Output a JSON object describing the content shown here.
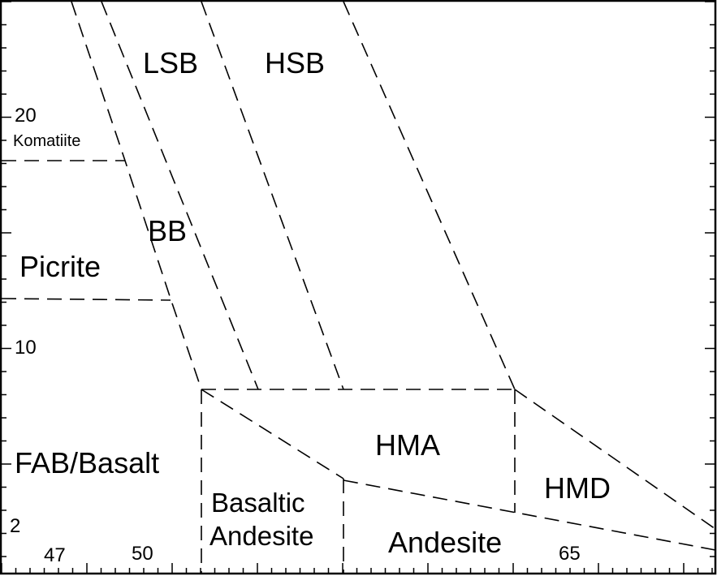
{
  "axes": {
    "y_ticks": [
      {
        "value": 20,
        "label": "20"
      },
      {
        "value": 10,
        "label": "10"
      },
      {
        "value": 2,
        "label": "2"
      }
    ],
    "x_ticks": [
      {
        "value": 47,
        "label": "47"
      },
      {
        "value": 50,
        "label": "50"
      },
      {
        "value": 65,
        "label": "65"
      }
    ]
  },
  "fields": {
    "lsb": "LSB",
    "hsb": "HSB",
    "komatiite": "Komatiite",
    "bb": "BB",
    "picrite": "Picrite",
    "fab_basalt": "FAB/Basalt",
    "hma": "HMA",
    "basaltic_andesite_1": "Basaltic",
    "basaltic_andesite_2": "Andesite",
    "andesite": "Andesite",
    "hmd": "HMD"
  }
}
